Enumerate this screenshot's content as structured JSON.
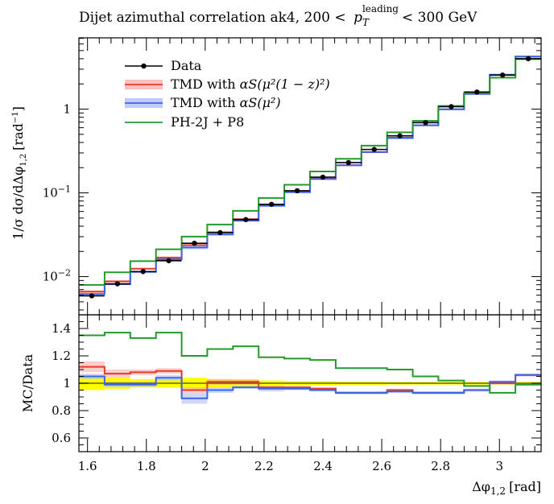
{
  "chart_data": {
    "type": "line",
    "title": "Dijet azimuthal correlation ak4, 200 < p_T^leading < 300 GeV",
    "title_parts": {
      "prefix": "Dijet azimuthal correlation ak4, 200 <",
      "var": "p",
      "sub": "T",
      "sup": "leading",
      "suffix": "< 300 GeV"
    },
    "xlabel": "Δφ1,2 [rad]",
    "xlabel_parts": {
      "main": "Δφ",
      "sub": "1,2",
      "unit": "[rad]"
    },
    "ylabel": "1/σ dσ/dΔφ1,2 [rad^-1]",
    "ratio_ylabel": "MC/Data",
    "xlim": [
      1.5708,
      3.1416
    ],
    "ylim_log": [
      0.0035,
      7.1
    ],
    "ratio_ylim": [
      0.5,
      1.5
    ],
    "bin_edges": [
      1.5708,
      1.6581,
      1.7453,
      1.8326,
      1.9199,
      2.0071,
      2.0944,
      2.1817,
      2.2689,
      2.3562,
      2.4435,
      2.5307,
      2.618,
      2.7053,
      2.7925,
      2.8798,
      2.9671,
      3.0543,
      3.1416
    ],
    "x_ticks": [
      {
        "value": 1.6,
        "label": "1.6"
      },
      {
        "value": 1.8,
        "label": "1.8"
      },
      {
        "value": 2.0,
        "label": "2"
      },
      {
        "value": 2.2,
        "label": "2.2"
      },
      {
        "value": 2.4,
        "label": "2.4"
      },
      {
        "value": 2.6,
        "label": "2.6"
      },
      {
        "value": 2.8,
        "label": "2.8"
      },
      {
        "value": 3.0,
        "label": "3"
      }
    ],
    "y_ticks": [
      {
        "value": 0.01,
        "label": "10",
        "exp": "−2"
      },
      {
        "value": 0.1,
        "label": "10",
        "exp": "−1"
      },
      {
        "value": 1,
        "label": "1",
        "exp": ""
      }
    ],
    "ratio_ticks": [
      {
        "value": 0.6,
        "label": "0.6"
      },
      {
        "value": 0.8,
        "label": "0.8"
      },
      {
        "value": 1.0,
        "label": "1"
      },
      {
        "value": 1.2,
        "label": "1.2"
      },
      {
        "value": 1.4,
        "label": "1.4"
      }
    ],
    "data": {
      "name": "Data",
      "color": "#000000",
      "values": [
        0.0059,
        0.0082,
        0.0115,
        0.0155,
        0.025,
        0.0335,
        0.048,
        0.073,
        0.106,
        0.154,
        0.23,
        0.33,
        0.48,
        0.69,
        1.07,
        1.6,
        2.55,
        4.0
      ],
      "rel_uncertainty": [
        0.05,
        0.04,
        0.03,
        0.03,
        0.04,
        0.03,
        0.025,
        0.02,
        0.015,
        0.015,
        0.012,
        0.012,
        0.01,
        0.01,
        0.01,
        0.01,
        0.01,
        0.01
      ]
    },
    "series": [
      {
        "name": "TMD with αS(μ²(1−z)²)",
        "legend_main": "TMD with ",
        "legend_math": "αS(μ²(1 − z)²)",
        "color": "#e8382a",
        "band_color": "#f7a5a5",
        "ratio": [
          1.12,
          1.07,
          1.08,
          1.09,
          0.95,
          1.01,
          1.01,
          0.97,
          0.97,
          0.96,
          0.93,
          0.93,
          0.95,
          0.93,
          0.93,
          0.95,
          1.0,
          1.06
        ],
        "ratio_band": [
          0.04,
          0.03,
          0.02,
          0.02,
          0.02,
          0.02,
          0.02,
          0.01,
          0.01,
          0.01,
          0.01,
          0.01,
          0.01,
          0.01,
          0.01,
          0.01,
          0.01,
          0.01
        ]
      },
      {
        "name": "TMD with αS(μ²)",
        "legend_main": "TMD with ",
        "legend_math": "αS(μ²)",
        "color": "#3c64e6",
        "band_color": "#a9b6f5",
        "ratio": [
          1.05,
          0.99,
          0.99,
          1.04,
          0.89,
          0.95,
          0.97,
          0.96,
          0.96,
          0.95,
          0.93,
          0.93,
          0.94,
          0.93,
          0.93,
          0.95,
          1.01,
          1.06
        ],
        "ratio_band": [
          0.02,
          0.02,
          0.02,
          0.02,
          0.04,
          0.02,
          0.01,
          0.02,
          0.01,
          0.01,
          0.01,
          0.01,
          0.01,
          0.01,
          0.01,
          0.01,
          0.01,
          0.01
        ]
      },
      {
        "name": "PH-2J + P8",
        "legend_main": "PH-2J + P8",
        "legend_math": "",
        "color": "#239b2a",
        "band_color": "",
        "ratio": [
          1.35,
          1.37,
          1.33,
          1.37,
          1.2,
          1.25,
          1.27,
          1.19,
          1.18,
          1.17,
          1.11,
          1.11,
          1.1,
          1.05,
          1.02,
          0.98,
          0.93,
          0.99
        ],
        "ratio_band": []
      }
    ],
    "data_band_color": "#ffff00",
    "legend_position": "top-left",
    "grid": false
  }
}
